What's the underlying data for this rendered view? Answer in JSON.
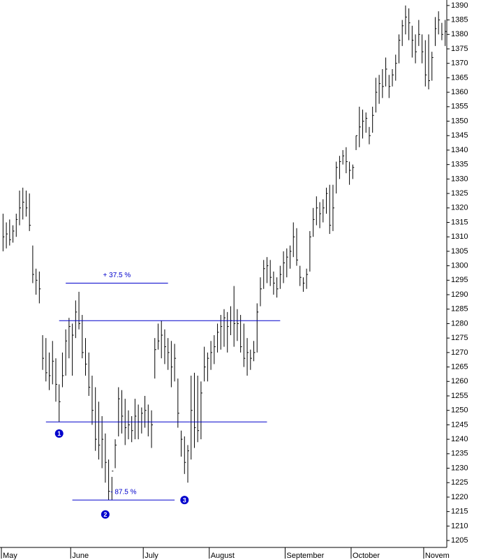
{
  "chart_data": {
    "type": "ohlc",
    "color": "#000000",
    "line_color": "#0000cc",
    "ylim": [
      1202.6,
      1391.9
    ],
    "yticks": [
      1205,
      1210,
      1215,
      1220,
      1225,
      1230,
      1235,
      1240,
      1245,
      1250,
      1255,
      1260,
      1265,
      1270,
      1275,
      1280,
      1285,
      1290,
      1295,
      1300,
      1305,
      1310,
      1315,
      1320,
      1325,
      1330,
      1335,
      1340,
      1345,
      1350,
      1355,
      1360,
      1365,
      1370,
      1375,
      1380,
      1385,
      1390
    ],
    "categories": [
      "May",
      null,
      null,
      null,
      null,
      null,
      null,
      null,
      null,
      null,
      null,
      null,
      null,
      null,
      null,
      null,
      null,
      null,
      null,
      null,
      null,
      "June",
      null,
      null,
      null,
      null,
      null,
      null,
      null,
      null,
      null,
      null,
      null,
      null,
      null,
      null,
      null,
      null,
      null,
      null,
      null,
      null,
      null,
      "July",
      null,
      null,
      null,
      null,
      null,
      null,
      null,
      null,
      null,
      null,
      null,
      null,
      null,
      null,
      null,
      null,
      null,
      null,
      null,
      "August",
      null,
      null,
      null,
      null,
      null,
      null,
      null,
      null,
      null,
      null,
      null,
      null,
      null,
      null,
      null,
      null,
      null,
      null,
      null,
      null,
      null,
      null,
      "September",
      null,
      null,
      null,
      null,
      null,
      null,
      null,
      null,
      null,
      null,
      null,
      null,
      null,
      null,
      null,
      null,
      null,
      null,
      null,
      "October",
      null,
      null,
      null,
      null,
      null,
      null,
      null,
      null,
      null,
      null,
      null,
      null,
      null,
      null,
      null,
      null,
      null,
      null,
      null,
      null,
      null,
      "Novem",
      null,
      null,
      null,
      null,
      null,
      null
    ],
    "high": [
      1318,
      1315,
      1316,
      1314,
      1318,
      1326,
      1327,
      1326,
      1325,
      1307,
      1299,
      1298,
      1276,
      1275,
      1270,
      1274,
      1268,
      1259,
      1270,
      1278,
      1282,
      1280,
      1288,
      1291,
      1283,
      1275,
      1270,
      1262,
      1258,
      1253,
      1248,
      1242,
      1233,
      1227,
      1240,
      1258,
      1257,
      1254,
      1250,
      1248,
      1254,
      1252,
      1251,
      1255,
      1252,
      1250,
      1275,
      1280,
      1281,
      1278,
      1275,
      1274,
      1273,
      1261,
      1243,
      1241,
      1238,
      1262,
      1263,
      1262,
      1260,
      1272,
      1270,
      1274,
      1276,
      1280,
      1283,
      1285,
      1284,
      1286,
      1293,
      1285,
      1283,
      1280,
      1275,
      1271,
      1274,
      1287,
      1296,
      1302,
      1303,
      1302,
      1298,
      1296,
      1300,
      1305,
      1306,
      1307,
      1315,
      1313,
      1300,
      1296,
      1299,
      1312,
      1320,
      1324,
      1322,
      1323,
      1327,
      1328,
      1328,
      1336,
      1338,
      1340,
      1341,
      1336,
      1335,
      1345,
      1355,
      1354,
      1353,
      1348,
      1355,
      1365,
      1366,
      1368,
      1372,
      1366,
      1368,
      1373,
      1380,
      1385,
      1390,
      1389,
      1383,
      1380,
      1385,
      1380,
      1378,
      1380,
      1374,
      1386,
      1388,
      1384,
      1385
    ],
    "low": [
      1305,
      1306,
      1307,
      1308,
      1310,
      1314,
      1316,
      1317,
      1312,
      1294,
      1290,
      1287,
      1264,
      1260,
      1257,
      1259,
      1253,
      1246,
      1258,
      1262,
      1268,
      1262,
      1275,
      1278,
      1268,
      1262,
      1255,
      1245,
      1236,
      1233,
      1230,
      1225,
      1219,
      1219,
      1230,
      1241,
      1242,
      1238,
      1240,
      1239,
      1240,
      1240,
      1242,
      1244,
      1241,
      1237,
      1261,
      1271,
      1268,
      1266,
      1264,
      1258,
      1260,
      1244,
      1234,
      1228,
      1225,
      1233,
      1237,
      1239,
      1240,
      1260,
      1260,
      1264,
      1266,
      1270,
      1271,
      1272,
      1270,
      1276,
      1272,
      1274,
      1270,
      1265,
      1262,
      1264,
      1267,
      1270,
      1286,
      1292,
      1294,
      1293,
      1290,
      1289,
      1292,
      1294,
      1296,
      1299,
      1303,
      1300,
      1293,
      1291,
      1292,
      1298,
      1310,
      1314,
      1313,
      1315,
      1318,
      1311,
      1312,
      1325,
      1330,
      1335,
      1332,
      1328,
      1330,
      1340,
      1341,
      1344,
      1346,
      1342,
      1346,
      1353,
      1356,
      1358,
      1362,
      1358,
      1362,
      1364,
      1370,
      1376,
      1380,
      1378,
      1372,
      1370,
      1376,
      1370,
      1362,
      1361,
      1364,
      1376,
      1380,
      1378,
      1376
    ],
    "close": [
      1310,
      1311,
      1309,
      1312,
      1316,
      1320,
      1322,
      1320,
      1314,
      1297,
      1295,
      1292,
      1268,
      1263,
      1262,
      1267,
      1259,
      1253,
      1262,
      1274,
      1279,
      1276,
      1284,
      1280,
      1270,
      1266,
      1258,
      1250,
      1240,
      1238,
      1240,
      1232,
      1222,
      1229,
      1238,
      1254,
      1248,
      1244,
      1245,
      1243,
      1248,
      1246,
      1249,
      1250,
      1246,
      1245,
      1271,
      1274,
      1276,
      1272,
      1270,
      1265,
      1268,
      1249,
      1240,
      1232,
      1236,
      1250,
      1244,
      1243,
      1256,
      1265,
      1268,
      1270,
      1272,
      1277,
      1279,
      1282,
      1279,
      1281,
      1280,
      1280,
      1272,
      1268,
      1270,
      1268,
      1270,
      1284,
      1292,
      1299,
      1300,
      1296,
      1294,
      1292,
      1297,
      1301,
      1303,
      1305,
      1310,
      1302,
      1296,
      1294,
      1297,
      1310,
      1316,
      1320,
      1318,
      1320,
      1325,
      1314,
      1320,
      1334,
      1336,
      1338,
      1336,
      1333,
      1334,
      1345,
      1348,
      1350,
      1351,
      1345,
      1352,
      1360,
      1363,
      1362,
      1368,
      1362,
      1366,
      1370,
      1378,
      1383,
      1386,
      1384,
      1378,
      1374,
      1380,
      1374,
      1366,
      1364,
      1372,
      1382,
      1385,
      1380,
      1381
    ],
    "lines": [
      {
        "value": 1281,
        "from": 17,
        "to": 84
      },
      {
        "value": 1246,
        "from": 13,
        "to": 80
      },
      {
        "value": 1294,
        "from": 19,
        "to": 50,
        "label": "+ 37.5 %"
      },
      {
        "value": 1219,
        "from": 21,
        "to": 52,
        "label": "- 87.5 %"
      }
    ],
    "points": [
      {
        "label": "1",
        "bar": 17,
        "value": 1242
      },
      {
        "label": "2",
        "bar": 31,
        "value": 1214
      },
      {
        "label": "3",
        "bar": 55,
        "value": 1219
      }
    ]
  }
}
